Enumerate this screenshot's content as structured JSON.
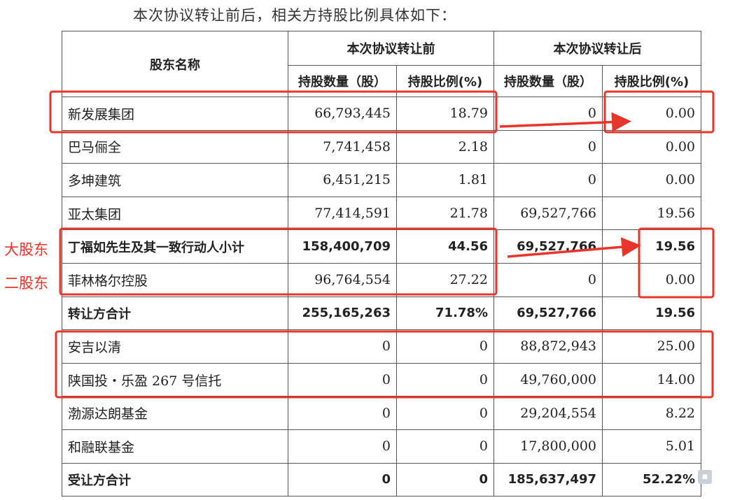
{
  "intro": "本次协议转让前后，相关方持股比例具体如下：",
  "headers": {
    "name": "股东名称",
    "before": "本次协议转让前",
    "after": "本次协议转让后",
    "shares": "持股数量（股）",
    "ratio": "持股比例(%)"
  },
  "rows": [
    {
      "name": "新发展集团",
      "before_shares": "66,793,445",
      "before_ratio": "18.79",
      "after_shares": "0",
      "after_ratio": "0.00",
      "bold": false
    },
    {
      "name": "巴马俪全",
      "before_shares": "7,741,458",
      "before_ratio": "2.18",
      "after_shares": "0",
      "after_ratio": "0.00",
      "bold": false
    },
    {
      "name": "多坤建筑",
      "before_shares": "6,451,215",
      "before_ratio": "1.81",
      "after_shares": "0",
      "after_ratio": "0.00",
      "bold": false
    },
    {
      "name": "亚太集团",
      "before_shares": "77,414,591",
      "before_ratio": "21.78",
      "after_shares": "69,527,766",
      "after_ratio": "19.56",
      "bold": false
    },
    {
      "name": "丁福如先生及其一致行动人小计",
      "before_shares": "158,400,709",
      "before_ratio": "44.56",
      "after_shares": "69,527,766",
      "after_ratio": "19.56",
      "bold": true
    },
    {
      "name": "菲林格尔控股",
      "before_shares": "96,764,554",
      "before_ratio": "27.22",
      "after_shares": "0",
      "after_ratio": "0.00",
      "bold": false
    },
    {
      "name": "转让方合计",
      "before_shares": "255,165,263",
      "before_ratio": "71.78%",
      "after_shares": "69,527,766",
      "after_ratio": "19.56",
      "bold": true
    },
    {
      "name": "安吉以清",
      "before_shares": "0",
      "before_ratio": "0",
      "after_shares": "88,872,943",
      "after_ratio": "25.00",
      "bold": false
    },
    {
      "name": "陕国投・乐盈 267 号信托",
      "before_shares": "0",
      "before_ratio": "0",
      "after_shares": "49,760,000",
      "after_ratio": "14.00",
      "bold": false
    },
    {
      "name": "渤源达朗基金",
      "before_shares": "0",
      "before_ratio": "0",
      "after_shares": "29,204,554",
      "after_ratio": "8.22",
      "bold": false
    },
    {
      "name": "和融联基金",
      "before_shares": "0",
      "before_ratio": "0",
      "after_shares": "17,800,000",
      "after_ratio": "5.01",
      "bold": false
    },
    {
      "name": "受让方合计",
      "before_shares": "0",
      "before_ratio": "0",
      "after_shares": "185,637,497",
      "after_ratio": "52.22%",
      "bold": true
    }
  ],
  "annotations": {
    "label_major": "大股东",
    "label_second": "二股东",
    "accent_color": "#e8352b"
  },
  "watermark": {
    "icon": "watermark-logo-icon"
  }
}
